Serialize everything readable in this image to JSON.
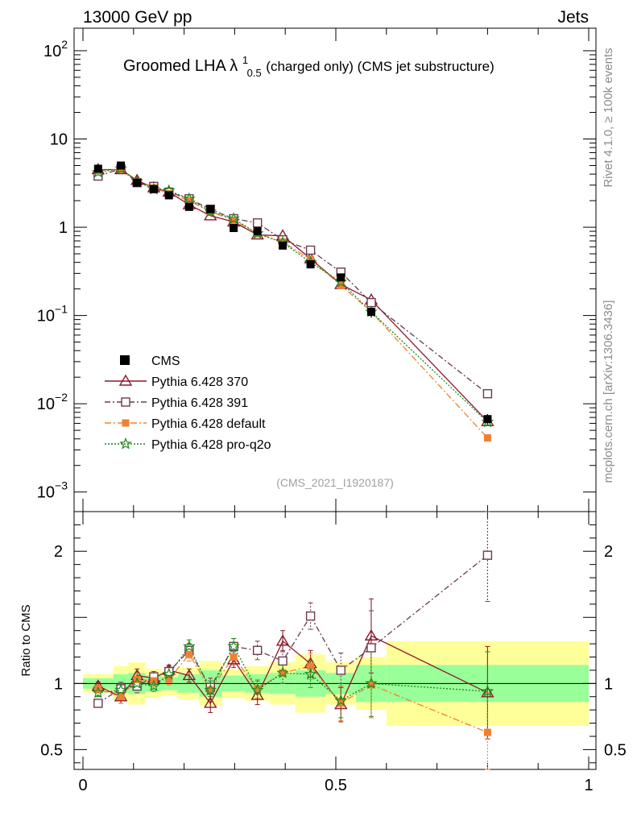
{
  "header": {
    "left": "13000 GeV pp",
    "right": "Jets"
  },
  "side_labels": {
    "rivet": "Rivet 4.1.0, ≥ 100k events",
    "mcplots": "mcplots.cern.ch [arXiv:1306.3436]"
  },
  "title": {
    "prefix": "Groomed LHA ",
    "lambda": "λ",
    "sup": "1",
    "sub": "0.5",
    "suffix": " (charged only) (CMS jet substructure)"
  },
  "analysis_id": "(CMS_2021_I1920187)",
  "chart_data": {
    "type": "line",
    "x_range": [
      0,
      1
    ],
    "x_ticks": [
      {
        "value": 0,
        "label": "0"
      },
      {
        "value": 0.5,
        "label": "0.5"
      },
      {
        "value": 1,
        "label": "1"
      }
    ],
    "main_panel": {
      "yscale": "log",
      "ylim": [
        0.0006,
        180
      ],
      "y_ticks": [
        {
          "value": 0.001,
          "base": "10",
          "exp": "−3"
        },
        {
          "value": 0.01,
          "base": "10",
          "exp": "−2"
        },
        {
          "value": 0.1,
          "base": "10",
          "exp": "−1"
        },
        {
          "value": 1,
          "base": "1",
          "exp": ""
        },
        {
          "value": 10,
          "base": "10",
          "exp": ""
        },
        {
          "value": 100,
          "base": "10",
          "exp": "2"
        }
      ]
    },
    "ratio_panel": {
      "ylabel": "Ratio to CMS",
      "ylim": [
        0.35,
        2.3
      ],
      "y_ticks": [
        {
          "value": 0.5,
          "label": "0.5"
        },
        {
          "value": 1,
          "label": "1"
        },
        {
          "value": 2,
          "label": "2"
        }
      ]
    },
    "bins": [
      {
        "x": 0.03,
        "lo": 0.0,
        "hi": 0.06
      },
      {
        "x": 0.075,
        "lo": 0.06,
        "hi": 0.09
      },
      {
        "x": 0.107,
        "lo": 0.09,
        "hi": 0.124
      },
      {
        "x": 0.14,
        "lo": 0.124,
        "hi": 0.156
      },
      {
        "x": 0.17,
        "lo": 0.156,
        "hi": 0.188
      },
      {
        "x": 0.21,
        "lo": 0.188,
        "hi": 0.23
      },
      {
        "x": 0.252,
        "lo": 0.23,
        "hi": 0.275
      },
      {
        "x": 0.298,
        "lo": 0.275,
        "hi": 0.32
      },
      {
        "x": 0.345,
        "lo": 0.32,
        "hi": 0.37
      },
      {
        "x": 0.395,
        "lo": 0.37,
        "hi": 0.42
      },
      {
        "x": 0.45,
        "lo": 0.42,
        "hi": 0.48
      },
      {
        "x": 0.51,
        "lo": 0.48,
        "hi": 0.54
      },
      {
        "x": 0.57,
        "lo": 0.54,
        "hi": 0.6
      },
      {
        "x": 0.8,
        "lo": 0.6,
        "hi": 1.0
      }
    ],
    "data": {
      "name": "CMS",
      "color": "#000000",
      "values": [
        4.6,
        5.0,
        3.2,
        2.7,
        2.3,
        1.7,
        1.6,
        0.98,
        0.9,
        0.62,
        0.38,
        0.27,
        0.11,
        0.0067
      ],
      "stat_band": [
        0.04,
        0.07,
        0.08,
        0.06,
        0.05,
        0.07,
        0.1,
        0.06,
        0.07,
        0.08,
        0.1,
        0.08,
        0.14,
        0.14
      ],
      "total_band": [
        0.07,
        0.13,
        0.16,
        0.11,
        0.09,
        0.12,
        0.17,
        0.11,
        0.13,
        0.16,
        0.22,
        0.16,
        0.2,
        0.32
      ]
    },
    "series": [
      {
        "name": "Pythia 6.428 370",
        "color": "#8b1a2b",
        "marker": "triangle",
        "dash": "",
        "values": [
          4.5,
          4.5,
          3.4,
          2.8,
          2.5,
          1.8,
          1.35,
          1.15,
          0.82,
          0.8,
          0.44,
          0.225,
          0.15,
          0.0063
        ],
        "ratio": [
          0.98,
          0.9,
          1.06,
          1.04,
          1.1,
          1.06,
          0.85,
          1.18,
          0.91,
          1.32,
          1.15,
          0.84,
          1.36,
          0.93
        ],
        "ratio_err": [
          0.03,
          0.05,
          0.05,
          0.04,
          0.04,
          0.05,
          0.07,
          0.06,
          0.07,
          0.08,
          0.1,
          0.13,
          0.28,
          0.35
        ]
      },
      {
        "name": "Pythia 6.428 391",
        "color": "#6b3a4f",
        "marker": "square-open",
        "dash": "7 3 2 3",
        "values": [
          3.8,
          4.6,
          3.2,
          2.9,
          2.5,
          2.1,
          1.6,
          1.25,
          1.12,
          0.72,
          0.55,
          0.31,
          0.14,
          0.013
        ],
        "ratio": [
          0.85,
          0.96,
          0.98,
          1.05,
          1.09,
          1.25,
          0.97,
          1.28,
          1.25,
          1.17,
          1.51,
          1.1,
          1.27,
          1.97
        ],
        "ratio_err": [
          0.03,
          0.05,
          0.05,
          0.04,
          0.04,
          0.05,
          0.07,
          0.06,
          0.07,
          0.08,
          0.1,
          0.13,
          0.28,
          0.35
        ]
      },
      {
        "name": "Pythia 6.428 default",
        "color": "#f08030",
        "marker": "square-filled",
        "dash": "8 3 2 3",
        "values": [
          4.4,
          4.5,
          3.3,
          2.8,
          2.4,
          2.0,
          1.5,
          1.2,
          0.85,
          0.68,
          0.43,
          0.22,
          0.11,
          0.0041
        ],
        "ratio": [
          0.96,
          0.9,
          1.03,
          1.02,
          1.03,
          1.22,
          0.95,
          1.2,
          0.96,
          1.08,
          1.13,
          0.85,
          0.99,
          0.63
        ],
        "ratio_err": [
          0.03,
          0.05,
          0.05,
          0.04,
          0.04,
          0.05,
          0.07,
          0.06,
          0.07,
          0.08,
          0.1,
          0.13,
          0.25,
          0.3
        ]
      },
      {
        "name": "Pythia 6.428 pro-q2o",
        "color": "#1a8a1a",
        "marker": "star",
        "dash": "2 2",
        "values": [
          4.2,
          4.6,
          3.3,
          2.7,
          2.6,
          2.1,
          1.5,
          1.25,
          0.85,
          0.67,
          0.4,
          0.24,
          0.11,
          0.0062
        ],
        "ratio": [
          0.93,
          0.95,
          1.0,
          0.98,
          1.07,
          1.28,
          0.95,
          1.28,
          0.95,
          1.08,
          1.07,
          0.87,
          1.0,
          0.94
        ],
        "ratio_err": [
          0.03,
          0.05,
          0.05,
          0.04,
          0.04,
          0.05,
          0.07,
          0.06,
          0.07,
          0.08,
          0.1,
          0.13,
          0.25,
          0.3
        ]
      }
    ]
  }
}
